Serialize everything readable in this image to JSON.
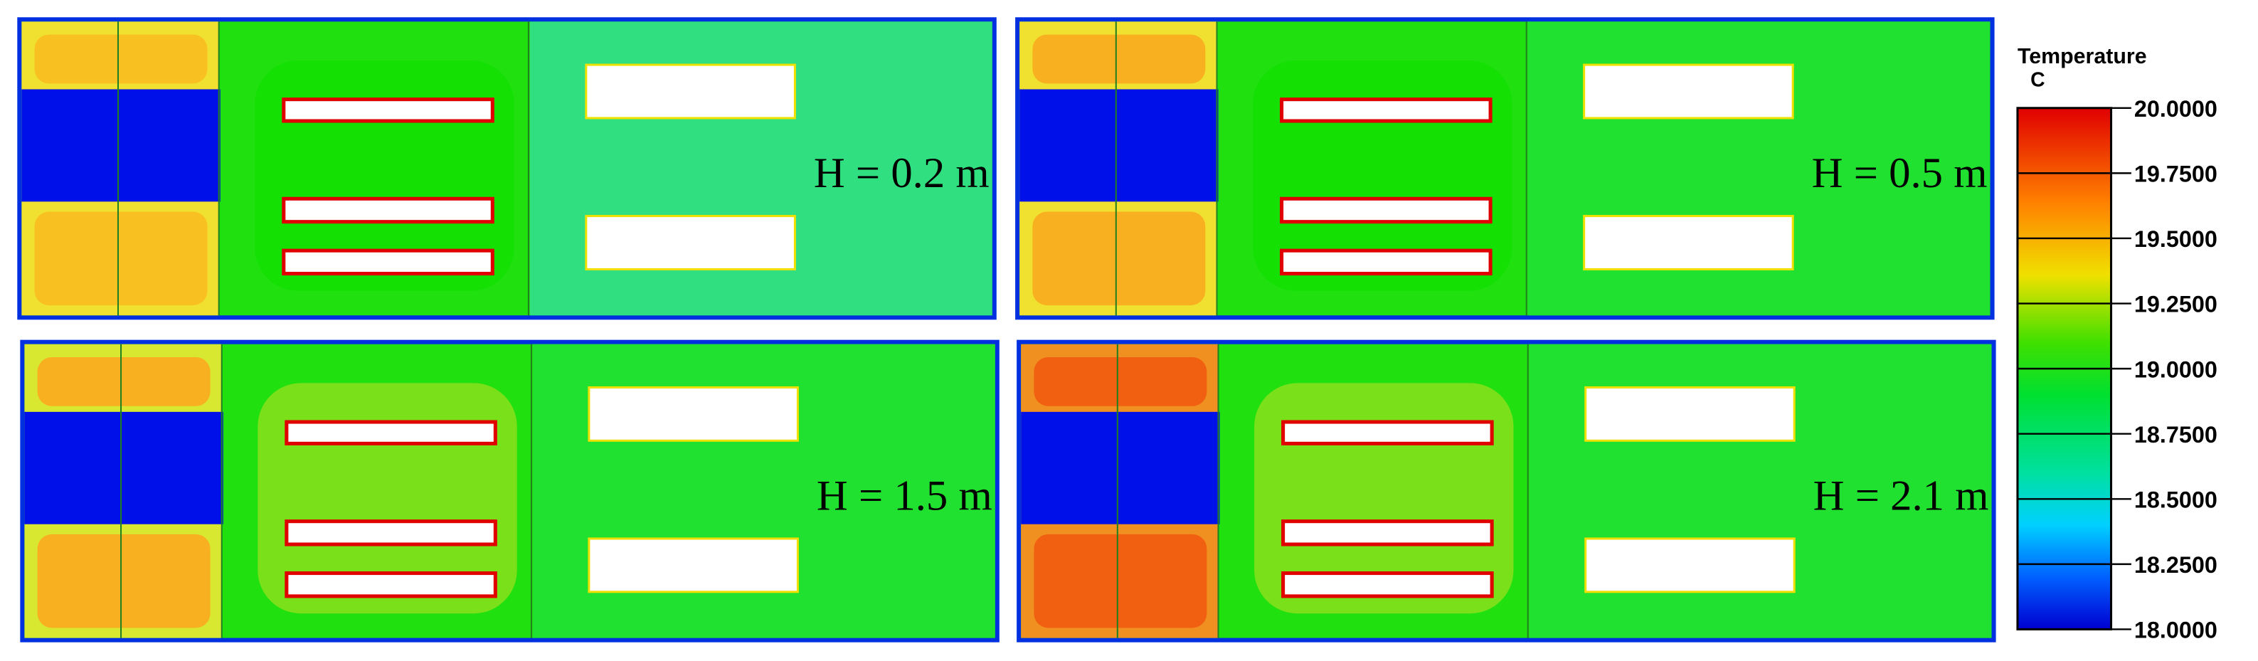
{
  "panels": [
    {
      "label": "H = 0.2 m"
    },
    {
      "label": "H = 0.5 m"
    },
    {
      "label": "H = 1.5 m"
    },
    {
      "label": "H = 2.1 m"
    }
  ],
  "colorbar": {
    "title": "Temperature",
    "unit": "C",
    "ticks": [
      "20.0000",
      "19.7500",
      "19.5000",
      "19.2500",
      "19.0000",
      "18.7500",
      "18.5000",
      "18.2500",
      "18.0000"
    ]
  }
}
